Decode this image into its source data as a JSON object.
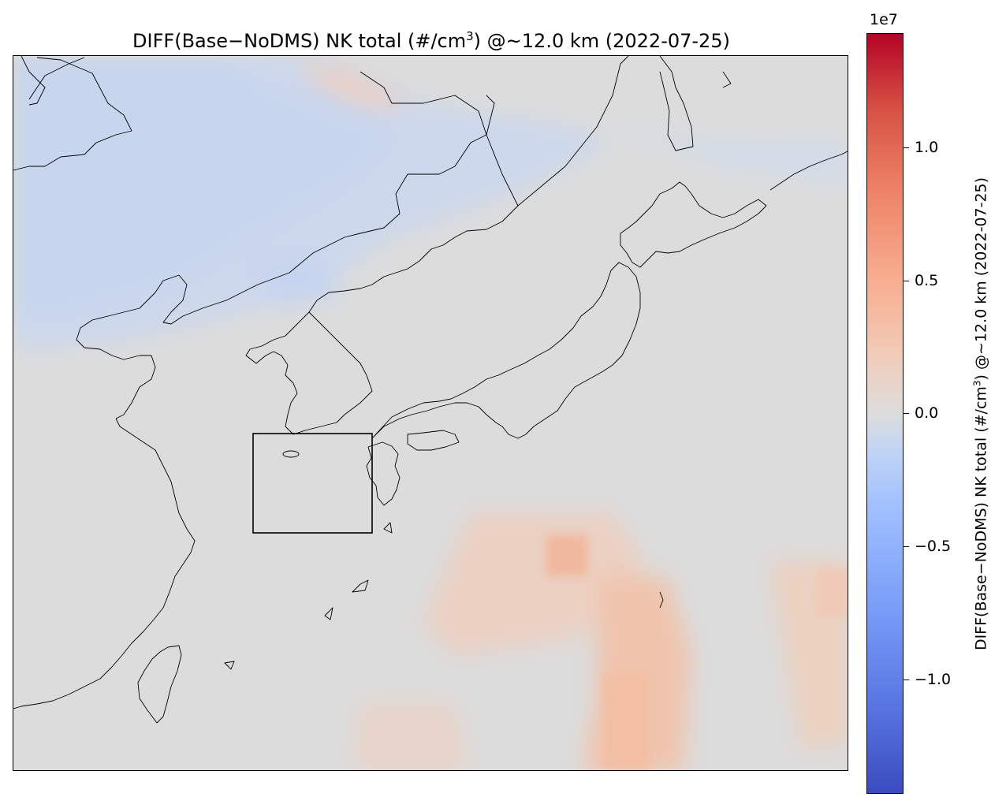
{
  "title": {
    "before": "DIFF(Base−NoDMS) NK total (#/cm",
    "sup": "3",
    "after": ") @~12.0 km (2022-07-25)"
  },
  "colorbar": {
    "label_before": "DIFF(Base−NoDMS) NK total (#/cm",
    "label_sup": "3",
    "label_after": ") @~12.0 km (2022-07-25)",
    "exponent": "1e7",
    "ticks": [
      "1.0",
      "0.5",
      "0.0",
      "−0.5",
      "−1.0"
    ],
    "tick_values": [
      1.0,
      0.5,
      0.0,
      -0.5,
      -1.0
    ],
    "range": [
      -1.43,
      1.43
    ],
    "colormap": "coolwarm",
    "colors": {
      "low": "#3b4cc0",
      "mid": "#dddddd",
      "high": "#b40426"
    }
  },
  "map": {
    "region": "East Asia (China, Korea, Japan, Taiwan)",
    "projection": "PlateCarree",
    "land_color": "#dcdcdc",
    "coastline_color": "#000000",
    "highlight_box": true,
    "anomalies": [
      {
        "feature": "negative anomaly over northern China / Mongolia",
        "sign": "negative"
      },
      {
        "feature": "positive anomaly over western Pacific south of Japan",
        "sign": "positive"
      }
    ]
  }
}
